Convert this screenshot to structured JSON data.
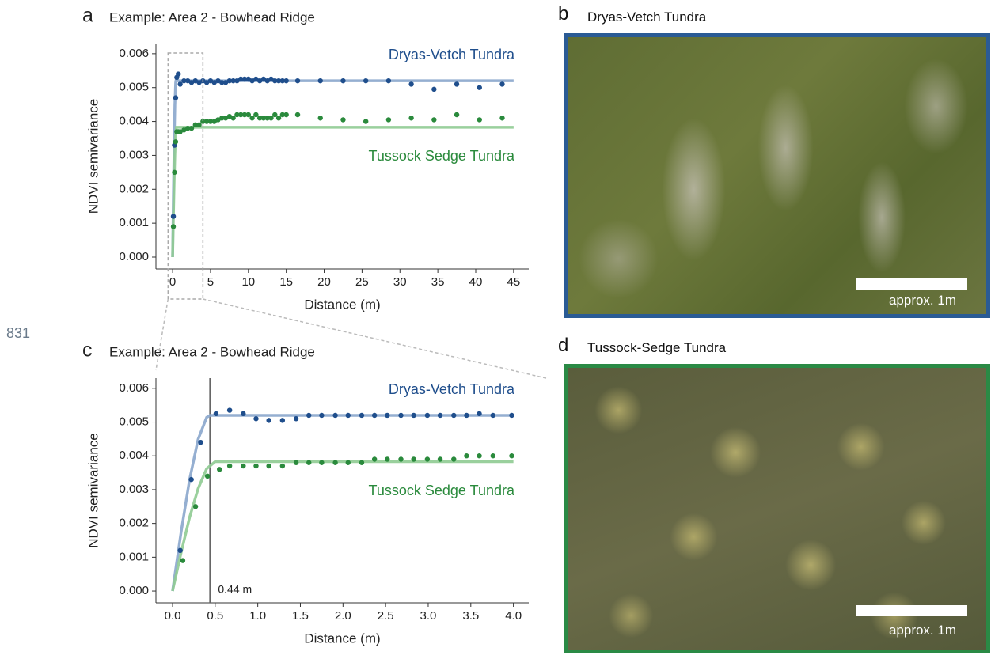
{
  "chart_data": [
    {
      "type": "scatter",
      "panel_label": "a",
      "title": "Example: Area 2 - Bowhead Ridge",
      "x_label": "Distance (m)",
      "y_label": "NDVI semivariance",
      "xlim": [
        -2.2,
        47
      ],
      "ylim": [
        -0.00035,
        0.0063
      ],
      "xticks": [
        0,
        5,
        10,
        15,
        20,
        25,
        30,
        35,
        40,
        45
      ],
      "yticks": [
        {
          "value": 0,
          "label": "0.000"
        },
        {
          "value": 0.001,
          "label": "0.001"
        },
        {
          "value": 0.002,
          "label": "0.002"
        },
        {
          "value": 0.003,
          "label": "0.003"
        },
        {
          "value": 0.004,
          "label": "0.004"
        },
        {
          "value": 0.005,
          "label": "0.005"
        },
        {
          "value": 0.006,
          "label": "0.006"
        }
      ],
      "zoom_x": [
        -0.6,
        4.0
      ],
      "series": [
        {
          "name": "Dryas-Vetch Tundra",
          "color": "#1f4e8c",
          "fit_color": "#8aa6cc",
          "x": [
            0.1,
            0.25,
            0.4,
            0.55,
            0.75,
            1,
            1.5,
            2,
            2.5,
            3,
            3.5,
            4,
            4.5,
            5,
            5.5,
            6,
            6.5,
            7,
            7.5,
            8,
            8.5,
            9,
            9.5,
            10,
            10.5,
            11,
            11.5,
            12,
            12.5,
            13,
            13.5,
            14,
            14.5,
            15,
            16.5,
            19.5,
            22.5,
            25.5,
            28.5,
            31.5,
            34.5,
            37.5,
            40.5,
            43.5
          ],
          "values": [
            0.0012,
            0.0033,
            0.0047,
            0.0053,
            0.0054,
            0.0051,
            0.0052,
            0.0052,
            0.00515,
            0.0052,
            0.00515,
            0.0052,
            0.00515,
            0.0052,
            0.00515,
            0.0052,
            0.00515,
            0.00515,
            0.0052,
            0.0052,
            0.0052,
            0.00525,
            0.00525,
            0.00525,
            0.0052,
            0.00525,
            0.0052,
            0.00525,
            0.0052,
            0.00525,
            0.0052,
            0.0052,
            0.0052,
            0.0052,
            0.0052,
            0.0052,
            0.0052,
            0.0052,
            0.0052,
            0.0051,
            0.00495,
            0.0051,
            0.005,
            0.0051
          ],
          "fit_x": [
            0,
            0.1,
            0.2,
            0.3,
            0.4,
            0.44,
            45
          ],
          "fit_values": [
            0,
            0.00174,
            0.0033,
            0.00449,
            0.00514,
            0.0052,
            0.0052
          ]
        },
        {
          "name": "Tussock Sedge Tundra",
          "color": "#2a8a3c",
          "fit_color": "#8fcb92",
          "x": [
            0.1,
            0.25,
            0.4,
            0.55,
            0.75,
            1,
            1.5,
            2,
            2.5,
            3,
            3.5,
            4,
            4.5,
            5,
            5.5,
            6,
            6.5,
            7,
            7.5,
            8,
            8.5,
            9,
            9.5,
            10,
            10.5,
            11,
            11.5,
            12,
            12.5,
            13,
            13.5,
            14,
            14.5,
            15,
            16.5,
            19.5,
            22.5,
            25.5,
            28.5,
            31.5,
            34.5,
            37.5,
            40.5,
            43.5
          ],
          "values": [
            0.0009,
            0.0025,
            0.0034,
            0.0037,
            0.0037,
            0.0037,
            0.00375,
            0.0038,
            0.0038,
            0.0039,
            0.0039,
            0.004,
            0.004,
            0.004,
            0.004,
            0.00405,
            0.0041,
            0.0041,
            0.00415,
            0.0041,
            0.0042,
            0.0042,
            0.0042,
            0.0042,
            0.0041,
            0.0042,
            0.0041,
            0.0041,
            0.0041,
            0.0041,
            0.0042,
            0.0041,
            0.0042,
            0.0042,
            0.0042,
            0.0041,
            0.00405,
            0.004,
            0.00405,
            0.0041,
            0.00405,
            0.0042,
            0.00405,
            0.0041
          ],
          "fit_x": [
            0,
            0.1,
            0.2,
            0.3,
            0.4,
            0.5,
            45
          ],
          "fit_values": [
            0,
            0.00113,
            0.00218,
            0.00303,
            0.00362,
            0.00383,
            0.00383
          ]
        }
      ]
    },
    {
      "type": "scatter",
      "panel_label": "c",
      "title": "Example: Area 2 - Bowhead Ridge",
      "x_label": "Distance (m)",
      "y_label": "NDVI semivariance",
      "xlim": [
        -0.195,
        4.18
      ],
      "ylim": [
        -0.00035,
        0.0063
      ],
      "xticks": [
        {
          "value": 0,
          "label": "0.0"
        },
        {
          "value": 0.5,
          "label": "0.5"
        },
        {
          "value": 1,
          "label": "1.0"
        },
        {
          "value": 1.5,
          "label": "1.5"
        },
        {
          "value": 2,
          "label": "2.0"
        },
        {
          "value": 2.5,
          "label": "2.5"
        },
        {
          "value": 3,
          "label": "3.0"
        },
        {
          "value": 3.5,
          "label": "3.5"
        },
        {
          "value": 4,
          "label": "4.0"
        }
      ],
      "yticks": [
        {
          "value": 0,
          "label": "0.000"
        },
        {
          "value": 0.001,
          "label": "0.001"
        },
        {
          "value": 0.002,
          "label": "0.002"
        },
        {
          "value": 0.003,
          "label": "0.003"
        },
        {
          "value": 0.004,
          "label": "0.004"
        },
        {
          "value": 0.005,
          "label": "0.005"
        },
        {
          "value": 0.006,
          "label": "0.006"
        }
      ],
      "vline": {
        "value": 0.44,
        "label": "0.44 m"
      },
      "series": [
        {
          "name": "Dryas-Vetch Tundra",
          "color": "#1f4e8c",
          "fit_color": "#8aa6cc",
          "x": [
            0.09,
            0.22,
            0.33,
            0.51,
            0.67,
            0.83,
            0.98,
            1.13,
            1.29,
            1.45,
            1.6,
            1.75,
            1.91,
            2.06,
            2.22,
            2.37,
            2.52,
            2.68,
            2.83,
            2.99,
            3.14,
            3.3,
            3.45,
            3.6,
            3.76,
            3.98
          ],
          "values": [
            0.0012,
            0.0033,
            0.0044,
            0.00525,
            0.00535,
            0.00525,
            0.0051,
            0.00505,
            0.00505,
            0.0051,
            0.0052,
            0.0052,
            0.0052,
            0.0052,
            0.0052,
            0.0052,
            0.0052,
            0.0052,
            0.0052,
            0.0052,
            0.0052,
            0.0052,
            0.0052,
            0.00525,
            0.0052,
            0.0052
          ],
          "fit_x": [
            0,
            0.1,
            0.2,
            0.3,
            0.4,
            0.44,
            4.0
          ],
          "fit_values": [
            0,
            0.00174,
            0.0033,
            0.00449,
            0.00514,
            0.0052,
            0.0052
          ]
        },
        {
          "name": "Tussock Sedge Tundra",
          "color": "#2a8a3c",
          "fit_color": "#8fcb92",
          "x": [
            0.12,
            0.27,
            0.41,
            0.55,
            0.67,
            0.83,
            0.98,
            1.13,
            1.29,
            1.45,
            1.6,
            1.75,
            1.91,
            2.06,
            2.22,
            2.37,
            2.52,
            2.68,
            2.83,
            2.99,
            3.14,
            3.3,
            3.45,
            3.6,
            3.76,
            3.98
          ],
          "values": [
            0.0009,
            0.0025,
            0.0034,
            0.0036,
            0.0037,
            0.0037,
            0.0037,
            0.0037,
            0.0037,
            0.0038,
            0.0038,
            0.0038,
            0.0038,
            0.0038,
            0.0038,
            0.0039,
            0.0039,
            0.0039,
            0.0039,
            0.0039,
            0.0039,
            0.0039,
            0.004,
            0.004,
            0.004,
            0.004
          ],
          "fit_x": [
            0,
            0.1,
            0.2,
            0.3,
            0.4,
            0.5,
            4.0
          ],
          "fit_values": [
            0,
            0.00113,
            0.00218,
            0.00303,
            0.00362,
            0.00383,
            0.00383
          ]
        }
      ]
    }
  ],
  "photos": [
    {
      "panel_label": "b",
      "title": "Dryas-Vetch Tundra",
      "scale_label": "approx. 1m"
    },
    {
      "panel_label": "d",
      "title": "Tussock-Sedge Tundra",
      "scale_label": "approx. 1m"
    }
  ],
  "page_number": "831"
}
